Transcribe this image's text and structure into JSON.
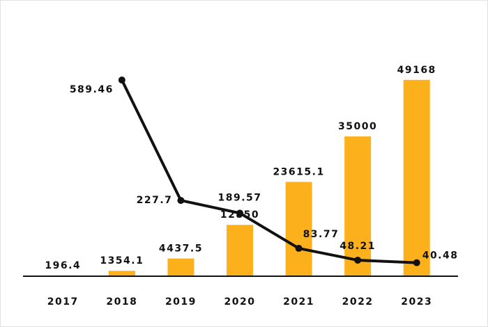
{
  "chart_data": {
    "type": "bar-line",
    "categories": [
      "2017",
      "2018",
      "2019",
      "2020",
      "2021",
      "2022",
      "2023"
    ],
    "series": [
      {
        "type": "bar",
        "color": "#fbb01c",
        "values": [
          196.4,
          1354.1,
          4437.5,
          12850,
          23615.1,
          35000,
          49168
        ]
      },
      {
        "type": "line",
        "axis": "y2",
        "color": "#111111",
        "values": [
          null,
          589.46,
          227.7,
          189.57,
          83.77,
          48.21,
          40.48
        ]
      }
    ],
    "ylim": [
      0,
      50000
    ],
    "y2lim": [
      0,
      600
    ]
  }
}
